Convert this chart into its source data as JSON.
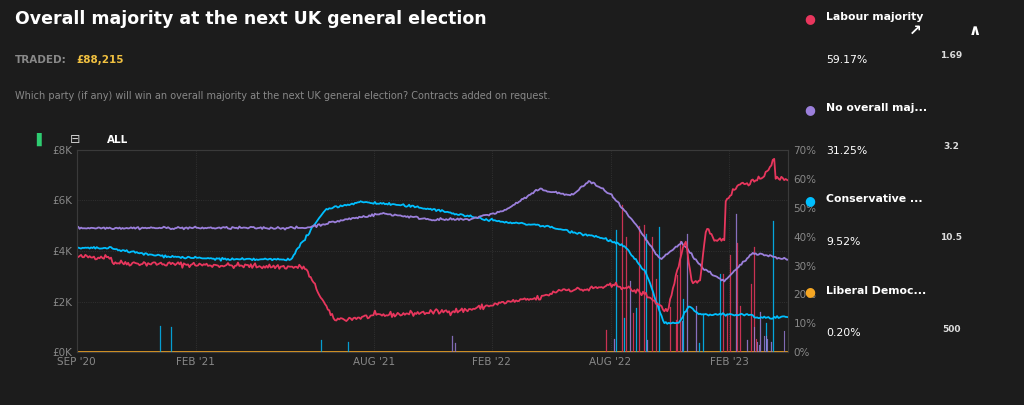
{
  "title": "Overall majority at the next UK general election",
  "traded_label": "TRADED:",
  "traded_value": "£88,215",
  "subtitle": "Which party (if any) will win an overall majority at the next UK general election? Contracts added on request.",
  "bg_color": "#1c1c1c",
  "plot_bg_color": "#1c1c1c",
  "grid_color": "#3a3a3a",
  "left_yticklabels": [
    "£0K",
    "£2K",
    "£4K",
    "£6K",
    "£8K"
  ],
  "right_yticklabels": [
    "0%",
    "10%",
    "20%",
    "30%",
    "40%",
    "50%",
    "60%",
    "70%"
  ],
  "legend": [
    {
      "label": "Labour majority",
      "pct": "59.17%",
      "odds": "1.69",
      "color": "#e8365d"
    },
    {
      "label": "No overall maj...",
      "pct": "31.25%",
      "odds": "3.2",
      "color": "#9b7fdb"
    },
    {
      "label": "Conservative ...",
      "pct": "9.52%",
      "odds": "10.5",
      "color": "#00bfff"
    },
    {
      "label": "Liberal Democ...",
      "pct": "0.20%",
      "odds": "500",
      "color": "#f5a623"
    }
  ],
  "xtick_positions": [
    0.0,
    0.167,
    0.417,
    0.583,
    0.75,
    0.917
  ],
  "xtick_labels": [
    "SEP '20",
    "FEB '21",
    "AUG '21",
    "FEB '22",
    "AUG '22",
    "FEB '23"
  ]
}
